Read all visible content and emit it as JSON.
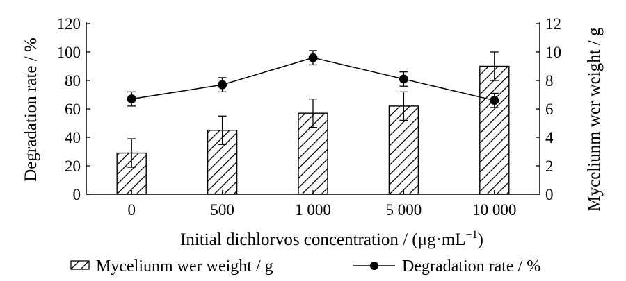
{
  "chart_data": {
    "type": "bar+line",
    "categories": [
      "0",
      "500",
      "1 000",
      "5 000",
      "10 000"
    ],
    "xlabel": "Initial dichlorvos concentration / (μg·mL",
    "xlabel_sup": "−1",
    "xlabel_end": ")",
    "ylabel_left": "Degradation rate / %",
    "ylabel_right": "Myceliunm wer weight / g",
    "yticks_left": [
      "0",
      "20",
      "40",
      "60",
      "80",
      "100",
      "120"
    ],
    "yticks_right": [
      "0",
      "2",
      "4",
      "6",
      "8",
      "10",
      "12"
    ],
    "ylim_left": [
      0,
      120
    ],
    "ylim_right": [
      0,
      12
    ],
    "series": [
      {
        "name": "Myceliunm wer weight / g",
        "type": "bar",
        "axis": "right",
        "pattern": "diagonal-hatch",
        "values": [
          2.9,
          4.5,
          5.7,
          6.2,
          9.0
        ],
        "errors": [
          1.0,
          1.0,
          1.0,
          1.0,
          1.0
        ]
      },
      {
        "name": "Degradation rate / %",
        "type": "line",
        "axis": "left",
        "marker": "filled-circle",
        "values": [
          67,
          77,
          96,
          81,
          66
        ],
        "errors": [
          5,
          5,
          5,
          5,
          5
        ]
      }
    ],
    "grid": false,
    "legend_position": "bottom"
  }
}
